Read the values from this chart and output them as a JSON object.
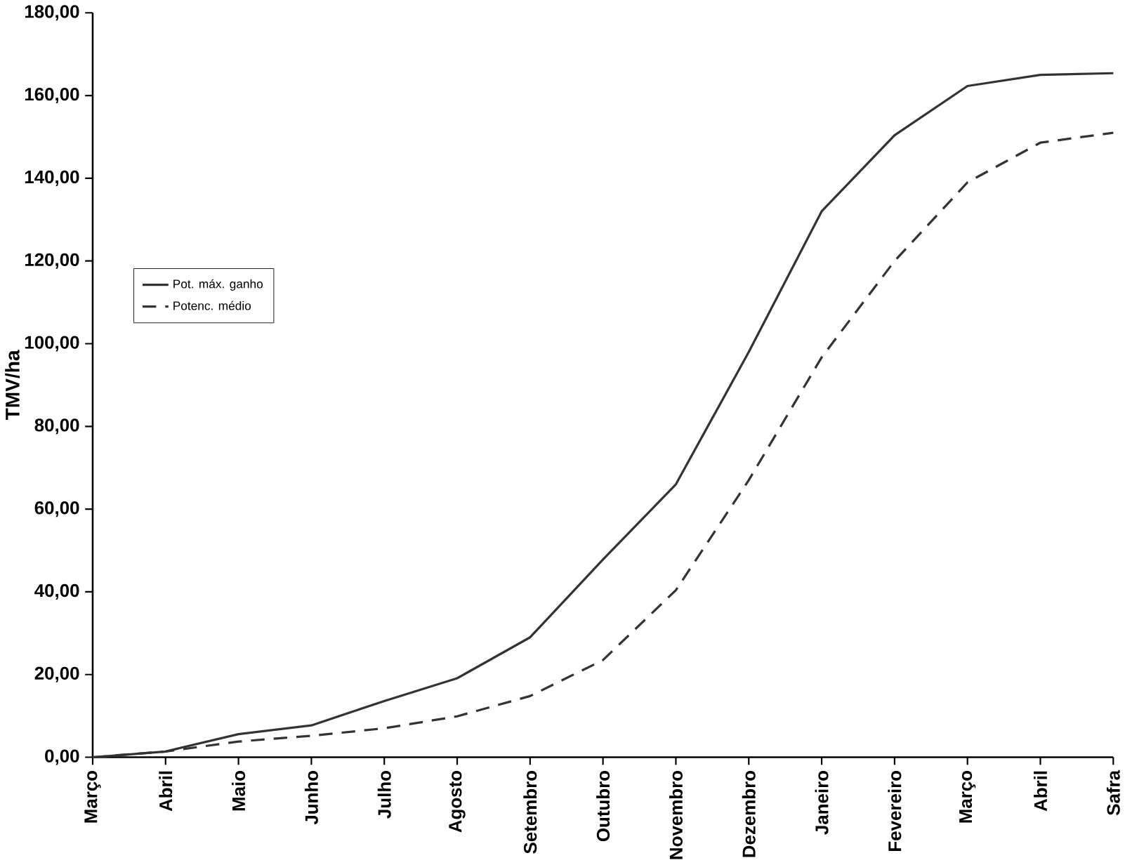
{
  "chart_data": {
    "type": "line",
    "ylabel": "TMV/ha",
    "categories": [
      "Março",
      "Abril",
      "Maio",
      "Junho",
      "Julho",
      "Agosto",
      "Setembro",
      "Outubro",
      "Novembro",
      "Dezembro",
      "Janeiro",
      "Fevereiro",
      "Março",
      "Abril",
      "Safra"
    ],
    "series": [
      {
        "name": "Pot. máx. ganho",
        "color": "#333333",
        "line_style": "solid",
        "values": [
          0,
          1.4,
          5.6,
          7.7,
          13.6,
          19.1,
          29,
          47.8,
          66,
          98,
          132,
          150.4,
          162.3,
          165,
          165.4
        ]
      },
      {
        "name": "Potenc. médio",
        "color": "#333333",
        "line_style": "dashed",
        "values": [
          0,
          1.4,
          3.8,
          5.2,
          7,
          9.9,
          14.8,
          23.5,
          40.4,
          67,
          96.7,
          120,
          139,
          148.6,
          151
        ]
      }
    ],
    "ylim": [
      0,
      180
    ],
    "yticks": [
      {
        "value": 0,
        "label": "0,00"
      },
      {
        "value": 20,
        "label": "20,00"
      },
      {
        "value": 40,
        "label": "40,00"
      },
      {
        "value": 60,
        "label": "60,00"
      },
      {
        "value": 80,
        "label": "80,00"
      },
      {
        "value": 100,
        "label": "100,00"
      },
      {
        "value": 120,
        "label": "120,00"
      },
      {
        "value": 140,
        "label": "140,00"
      },
      {
        "value": 160,
        "label": "160,00"
      },
      {
        "value": 180,
        "label": "180,00"
      }
    ],
    "legend": "left",
    "grid": false,
    "marker": "none"
  }
}
